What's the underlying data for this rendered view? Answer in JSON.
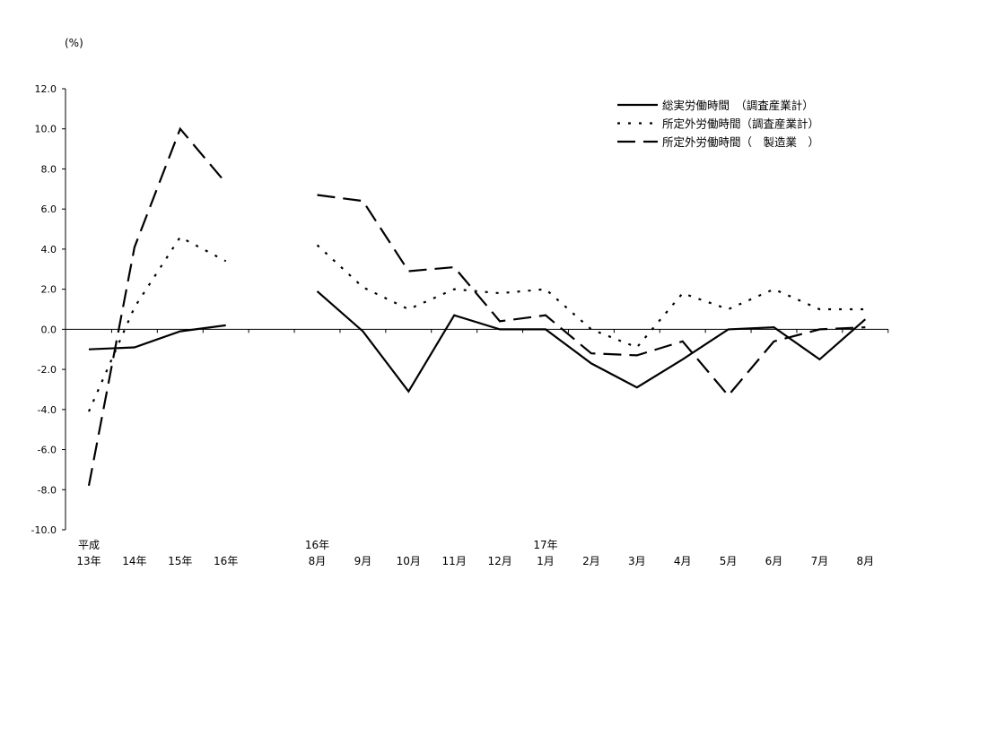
{
  "chart_data": {
    "type": "line",
    "unit_label": "(%)",
    "ylim": [
      -10.0,
      12.0
    ],
    "y_ticks": [
      "12.0",
      "10.0",
      "8.0",
      "6.0",
      "4.0",
      "2.0",
      "0.0",
      "-2.0",
      "-4.0",
      "-6.0",
      "-8.0",
      "-10.0"
    ],
    "grid": false,
    "legend_position": "top-right",
    "categories": [
      {
        "top": "平成",
        "bottom": "13年"
      },
      {
        "top": "",
        "bottom": "14年"
      },
      {
        "top": "",
        "bottom": "15年"
      },
      {
        "top": "",
        "bottom": "16年"
      },
      {
        "top": "",
        "bottom": ""
      },
      {
        "top": "16年",
        "bottom": "8月"
      },
      {
        "top": "",
        "bottom": "9月"
      },
      {
        "top": "",
        "bottom": "10月"
      },
      {
        "top": "",
        "bottom": "11月"
      },
      {
        "top": "",
        "bottom": "12月"
      },
      {
        "top": "17年",
        "bottom": "1月"
      },
      {
        "top": "",
        "bottom": "2月"
      },
      {
        "top": "",
        "bottom": "3月"
      },
      {
        "top": "",
        "bottom": "4月"
      },
      {
        "top": "",
        "bottom": "5月"
      },
      {
        "top": "",
        "bottom": "6月"
      },
      {
        "top": "",
        "bottom": "7月"
      },
      {
        "top": "",
        "bottom": "8月"
      }
    ],
    "series": [
      {
        "name": "総実労働時間　（調査産業計）",
        "style": "solid",
        "values": [
          -1.0,
          -0.9,
          -0.1,
          0.2,
          null,
          1.9,
          -0.1,
          -3.1,
          0.7,
          0.0,
          0.0,
          -1.7,
          -2.9,
          -1.5,
          0.0,
          0.1,
          -1.5,
          0.5
        ]
      },
      {
        "name": "所定外労働時間（調査産業計）",
        "style": "dotted",
        "values": [
          -4.1,
          1.1,
          4.6,
          3.4,
          null,
          4.2,
          2.1,
          1.0,
          2.0,
          1.8,
          2.0,
          0.0,
          -0.9,
          1.8,
          1.0,
          2.0,
          1.0,
          1.0
        ]
      },
      {
        "name": "所定外労働時間（　製造業　）",
        "style": "dashed",
        "values": [
          -7.8,
          4.1,
          10.0,
          7.3,
          null,
          6.7,
          6.4,
          2.9,
          3.1,
          0.4,
          0.7,
          -1.2,
          -1.3,
          -0.6,
          -3.3,
          -0.6,
          0.0,
          0.1
        ]
      }
    ]
  }
}
